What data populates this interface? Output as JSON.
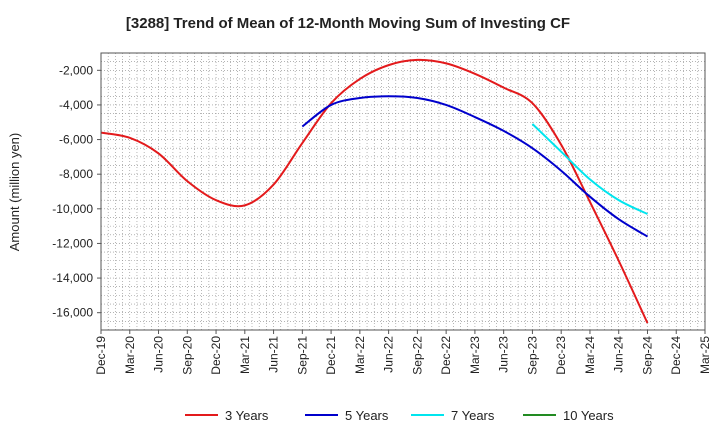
{
  "chart_data": {
    "type": "line",
    "title": "[3288]  Trend of Mean of 12-Month Moving Sum of Investing CF",
    "xlabel": "",
    "ylabel": "Amount (million yen)",
    "ylim": [
      -17000,
      -1000
    ],
    "yticks": [
      -2000,
      -4000,
      -6000,
      -8000,
      -10000,
      -12000,
      -14000,
      -16000
    ],
    "ytick_labels": [
      "-2,000",
      "-4,000",
      "-6,000",
      "-8,000",
      "-10,000",
      "-12,000",
      "-14,000",
      "-16,000"
    ],
    "categories": [
      "Dec-19",
      "Mar-20",
      "Jun-20",
      "Sep-20",
      "Dec-20",
      "Mar-21",
      "Jun-21",
      "Sep-21",
      "Dec-21",
      "Mar-22",
      "Jun-22",
      "Sep-22",
      "Dec-22",
      "Mar-23",
      "Jun-23",
      "Sep-23",
      "Dec-23",
      "Mar-24",
      "Jun-24",
      "Sep-24",
      "Dec-24",
      "Mar-25"
    ],
    "grid": true,
    "legend_position": "bottom",
    "series": [
      {
        "name": "3 Years",
        "color": "#e31a1c",
        "x": [
          0,
          1,
          2,
          3,
          4,
          5,
          6,
          7,
          8,
          9,
          10,
          11,
          12,
          13,
          14,
          15,
          16,
          17,
          18,
          19
        ],
        "values": [
          -5600,
          -5900,
          -6800,
          -8400,
          -9500,
          -9800,
          -8600,
          -6200,
          -3900,
          -2500,
          -1700,
          -1400,
          -1600,
          -2200,
          -3000,
          -3900,
          -6300,
          -9600,
          -13000,
          -16600
        ]
      },
      {
        "name": "5 Years",
        "color": "#0000cc",
        "x": [
          7,
          8,
          9,
          10,
          11,
          12,
          13,
          14,
          15,
          16,
          17,
          18,
          19
        ],
        "values": [
          -5250,
          -4000,
          -3600,
          -3500,
          -3600,
          -4000,
          -4700,
          -5500,
          -6500,
          -7800,
          -9300,
          -10600,
          -11600
        ]
      },
      {
        "name": "7 Years",
        "color": "#00e5ee",
        "x": [
          15,
          16,
          17,
          18,
          19
        ],
        "values": [
          -5100,
          -6700,
          -8300,
          -9500,
          -10300
        ]
      },
      {
        "name": "10 Years",
        "color": "#228b22",
        "x": [],
        "values": []
      }
    ]
  }
}
